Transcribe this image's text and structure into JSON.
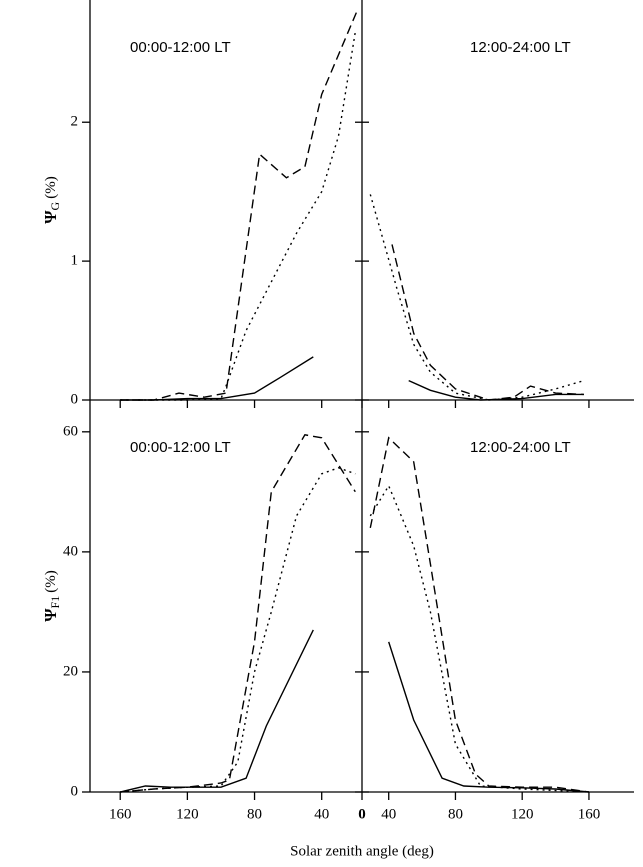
{
  "figure": {
    "x_label": "Solar zenith angle (deg)"
  },
  "chart_data": [
    {
      "type": "line",
      "panel": "top-left",
      "annotation": "00:00-12:00 LT",
      "y_label": {
        "symbol": "Ψ",
        "sub": "G",
        "unit": "(%)"
      },
      "xlim": [
        178,
        16
      ],
      "ylim": [
        0,
        2.88
      ],
      "yticks": [
        0,
        1,
        2
      ],
      "series": [
        {
          "dash": "solid",
          "color": "#000",
          "x": [
            160,
            140,
            120,
            100,
            95,
            80,
            65,
            45
          ],
          "values": [
            0,
            0,
            0.01,
            0.01,
            0.02,
            0.05,
            0.16,
            0.31
          ]
        },
        {
          "dash": "dashed",
          "color": "#000",
          "x": [
            160,
            140,
            125,
            110,
            97,
            77,
            61,
            50,
            40,
            19
          ],
          "values": [
            0,
            0,
            0.05,
            0.02,
            0.05,
            1.77,
            1.6,
            1.68,
            2.2,
            2.8
          ]
        },
        {
          "dash": "dotted",
          "color": "#000",
          "x": [
            160,
            140,
            120,
            100,
            97,
            85,
            70,
            55,
            40,
            30,
            20
          ],
          "values": [
            0,
            0,
            0,
            0.01,
            0.1,
            0.5,
            0.85,
            1.2,
            1.5,
            1.9,
            2.65
          ]
        }
      ]
    },
    {
      "type": "line",
      "panel": "top-right",
      "annotation": "12:00-24:00 LT",
      "xlim": [
        24,
        187
      ],
      "ylim": [
        0,
        2.88
      ],
      "series": [
        {
          "dash": "solid",
          "color": "#000",
          "x": [
            52,
            65,
            80,
            95,
            120,
            140,
            157
          ],
          "values": [
            0.14,
            0.07,
            0.02,
            0,
            0.01,
            0.04,
            0.04
          ]
        },
        {
          "dash": "dashed",
          "color": "#000",
          "x": [
            42,
            55,
            65,
            80,
            100,
            115,
            125,
            140,
            157
          ],
          "values": [
            1.12,
            0.48,
            0.25,
            0.08,
            0,
            0.02,
            0.1,
            0.05,
            0.04
          ]
        },
        {
          "dash": "dotted",
          "color": "#000",
          "x": [
            29,
            45,
            55,
            65,
            80,
            100,
            120,
            140,
            157
          ],
          "values": [
            1.48,
            0.8,
            0.4,
            0.2,
            0.05,
            0,
            0.02,
            0.08,
            0.14
          ]
        }
      ]
    },
    {
      "type": "line",
      "panel": "bottom-left",
      "annotation": "00:00-12:00 LT",
      "y_label": {
        "symbol": "Ψ",
        "sub": "F1",
        "unit": "(%)"
      },
      "xlim": [
        178,
        16
      ],
      "xticks": [
        160,
        120,
        80,
        40
      ],
      "ylim": [
        0,
        65.3
      ],
      "yticks": [
        0,
        20,
        40,
        60
      ],
      "series": [
        {
          "dash": "solid",
          "color": "#000",
          "x": [
            160,
            145,
            130,
            110,
            100,
            85,
            73,
            45
          ],
          "values": [
            0,
            1,
            0.8,
            0.8,
            0.8,
            2.3,
            11,
            27
          ]
        },
        {
          "dash": "dashed",
          "color": "#000",
          "x": [
            160,
            140,
            120,
            100,
            95,
            80,
            70,
            50,
            40,
            20
          ],
          "values": [
            0,
            0.5,
            0.8,
            1.5,
            2,
            25,
            50,
            59.5,
            59,
            50
          ]
        },
        {
          "dash": "dotted",
          "color": "#000",
          "x": [
            160,
            140,
            120,
            100,
            90,
            80,
            70,
            55,
            40,
            30,
            20
          ],
          "values": [
            0,
            0.5,
            0.8,
            1,
            5,
            20,
            30,
            46,
            53,
            54,
            53
          ]
        }
      ]
    },
    {
      "type": "line",
      "panel": "bottom-right",
      "annotation": "12:00-24:00 LT",
      "xlim": [
        24,
        187
      ],
      "xticks": [
        {
          "value": 24,
          "label": "0"
        },
        40,
        80,
        120,
        160
      ],
      "ylim": [
        0,
        65.3
      ],
      "series": [
        {
          "dash": "solid",
          "color": "#000",
          "x": [
            40,
            55,
            72,
            85,
            100,
            120,
            140,
            160
          ],
          "values": [
            25,
            12,
            2.3,
            1,
            0.8,
            0.7,
            0.5,
            0
          ]
        },
        {
          "dash": "dashed",
          "color": "#000",
          "x": [
            29,
            40,
            55,
            65,
            80,
            92,
            100,
            120,
            140,
            160
          ],
          "values": [
            44,
            59,
            55,
            38,
            12,
            3,
            1,
            0.8,
            0.8,
            0
          ]
        },
        {
          "dash": "dotted",
          "color": "#000",
          "x": [
            29,
            40,
            55,
            65,
            80,
            95,
            120,
            160
          ],
          "values": [
            46,
            51,
            41,
            30,
            8,
            1,
            0.5,
            0
          ]
        }
      ]
    }
  ]
}
